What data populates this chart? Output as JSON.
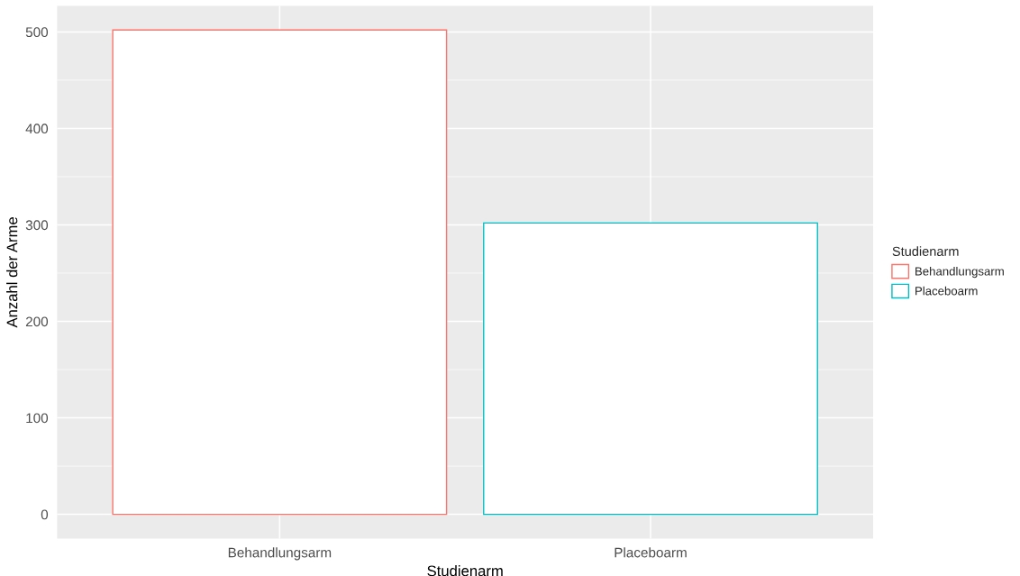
{
  "chart_data": {
    "type": "bar",
    "xlabel": "Studienarm",
    "ylabel": "Anzahl der Arme",
    "legend_title": "Studienarm",
    "categories": [
      "Behandlungsarm",
      "Placeboarm"
    ],
    "series": [
      {
        "name": "Behandlungsarm",
        "color": "#f8766d",
        "values": [
          502,
          null
        ]
      },
      {
        "name": "Placeboarm",
        "color": "#00bfc4",
        "values": [
          null,
          302
        ]
      }
    ],
    "ylim": [
      -25.1,
      527.1
    ],
    "yticks": [
      0,
      100,
      200,
      300,
      400,
      500
    ],
    "grid": true,
    "legend": "right"
  }
}
